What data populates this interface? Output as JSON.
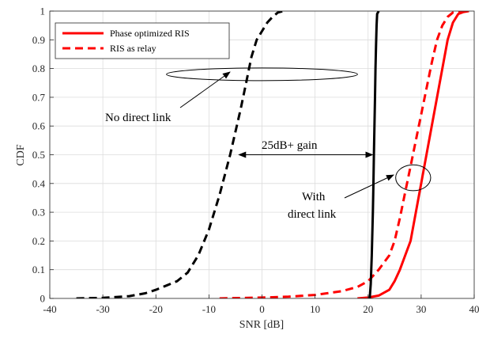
{
  "chart_data": {
    "type": "line",
    "xlabel": "SNR [dB]",
    "ylabel": "CDF",
    "xlim": [
      -40,
      40
    ],
    "ylim": [
      0,
      1
    ],
    "x_ticks": [
      "-40",
      "-30",
      "-20",
      "-10",
      "0",
      "10",
      "20",
      "30",
      "40"
    ],
    "y_ticks": [
      "0",
      "0.1",
      "0.2",
      "0.3",
      "0.4",
      "0.5",
      "0.6",
      "0.7",
      "0.8",
      "0.9",
      "1"
    ],
    "grid": true,
    "legend_position": "top-left",
    "legend": [
      {
        "label": "Phase optimized RIS",
        "style": "solid",
        "color": "#ff0000"
      },
      {
        "label": "RIS as relay",
        "style": "dashed",
        "color": "#ff0000"
      }
    ],
    "series": [
      {
        "color": "#ff0000",
        "style": "solid",
        "curve": "direct-link",
        "x": [
          18,
          20,
          22,
          24,
          25,
          26,
          27,
          28,
          29,
          30,
          31,
          32,
          33,
          34,
          35,
          36,
          37,
          38,
          39
        ],
        "y": [
          0,
          0.003,
          0.01,
          0.03,
          0.06,
          0.1,
          0.15,
          0.2,
          0.3,
          0.4,
          0.5,
          0.6,
          0.7,
          0.8,
          0.9,
          0.96,
          0.99,
          0.997,
          1.0
        ]
      },
      {
        "color": "#ff0000",
        "style": "dashed",
        "curve": "direct-link",
        "x": [
          -8,
          0,
          5,
          10,
          15,
          18,
          20,
          22,
          24,
          25,
          26,
          27,
          28,
          29,
          30,
          31,
          32,
          33,
          34,
          35,
          36,
          38,
          39
        ],
        "y": [
          0,
          0.003,
          0.006,
          0.012,
          0.025,
          0.04,
          0.06,
          0.1,
          0.15,
          0.2,
          0.28,
          0.37,
          0.46,
          0.55,
          0.64,
          0.73,
          0.82,
          0.9,
          0.95,
          0.98,
          0.995,
          1.0,
          1.0
        ]
      },
      {
        "color": "#000000",
        "style": "solid",
        "curve": "direct-link",
        "x": [
          20.3,
          20.5,
          20.7,
          20.9,
          21.0,
          21.1,
          21.2,
          21.3,
          21.4,
          21.5,
          21.6,
          21.7,
          22.0
        ],
        "y": [
          0,
          0.05,
          0.15,
          0.3,
          0.4,
          0.5,
          0.6,
          0.7,
          0.8,
          0.88,
          0.95,
          0.99,
          1.0
        ]
      },
      {
        "color": "#000000",
        "style": "dashed",
        "curve": "no-direct-link",
        "x": [
          -35,
          -30,
          -25,
          -22,
          -20,
          -18,
          -16,
          -14,
          -12,
          -10,
          -8,
          -6,
          -4,
          -3,
          -2,
          -1,
          0,
          1,
          2,
          3,
          4
        ],
        "y": [
          0,
          0.002,
          0.008,
          0.018,
          0.03,
          0.045,
          0.06,
          0.09,
          0.15,
          0.24,
          0.36,
          0.5,
          0.66,
          0.75,
          0.84,
          0.9,
          0.93,
          0.96,
          0.98,
          0.995,
          1.0
        ]
      }
    ],
    "annotations": {
      "no_direct_link": "No direct link",
      "gain": "25dB+ gain",
      "with_line1": "With",
      "with_line2": "direct link"
    },
    "ellipses": [
      {
        "center_x": 0,
        "center_y": 0.78,
        "semi_x": 18,
        "semi_y": 0.022
      },
      {
        "center_x": 28.5,
        "center_y": 0.42,
        "semi_x": 3.3,
        "semi_y": 0.045
      }
    ],
    "gain_arrow": {
      "x_from": -4.5,
      "x_to": 21,
      "y": 0.5
    }
  }
}
